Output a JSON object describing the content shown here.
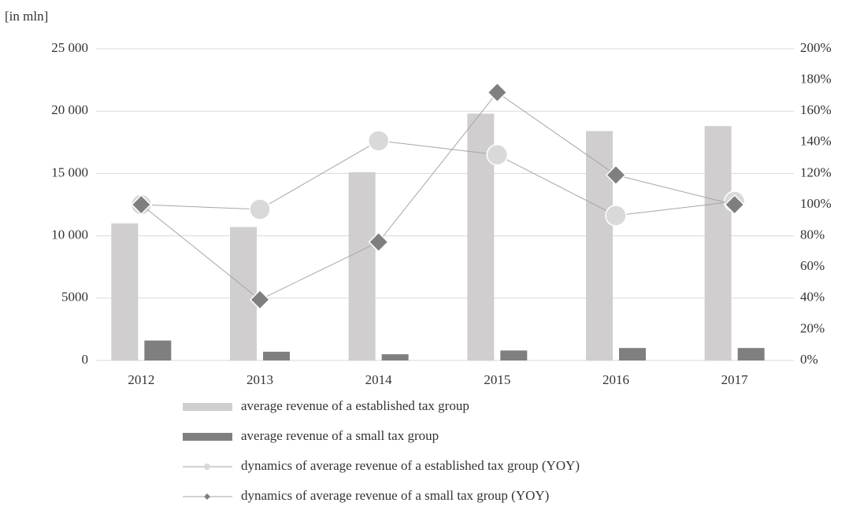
{
  "chart_data": {
    "type": "bar",
    "y_label": "[in mln]",
    "categories": [
      "2012",
      "2013",
      "2014",
      "2015",
      "2016",
      "2017"
    ],
    "series": [
      {
        "name": "average revenue of a established tax group",
        "type": "bar",
        "color": "#d0cece",
        "values": [
          11000,
          10700,
          15100,
          19800,
          18400,
          18800
        ]
      },
      {
        "name": "average revenue of a small tax group",
        "type": "bar",
        "color": "#7f7f7f",
        "values": [
          1600,
          700,
          500,
          800,
          1000,
          1000
        ]
      },
      {
        "name": "dynamics of average revenue of a established tax group (YOY)",
        "type": "line",
        "marker": "circle",
        "axis": "y2",
        "color": "#d9d9d9",
        "values": [
          100,
          97,
          141,
          132,
          93,
          102
        ]
      },
      {
        "name": "dynamics of average revenue of a small  tax group (YOY)",
        "type": "line",
        "marker": "diamond",
        "axis": "y2",
        "color": "#7f7f7f",
        "values": [
          100,
          39,
          76,
          172,
          119,
          100
        ]
      }
    ],
    "ylim": [
      0,
      25000
    ],
    "yticks": [
      0,
      5000,
      {
        "value": 10000,
        "label": "10 000"
      },
      {
        "value": 15000,
        "label": "15 000"
      },
      {
        "value": 20000,
        "label": "20 000"
      },
      {
        "value": 25000,
        "label": "25 000"
      }
    ],
    "y2lim": [
      0,
      200
    ],
    "y2ticks": [
      {
        "value": 0,
        "label": "0%"
      },
      {
        "value": 20,
        "label": "20%"
      },
      {
        "value": 40,
        "label": "40%"
      },
      {
        "value": 60,
        "label": "60%"
      },
      {
        "value": 80,
        "label": "80%"
      },
      {
        "value": 100,
        "label": "100%"
      },
      {
        "value": 120,
        "label": "120%"
      },
      {
        "value": 140,
        "label": "140%"
      },
      {
        "value": 160,
        "label": "160%"
      },
      {
        "value": 180,
        "label": "180%"
      },
      {
        "value": 200,
        "label": "200%"
      }
    ],
    "grid": true,
    "legend": "bottom"
  }
}
